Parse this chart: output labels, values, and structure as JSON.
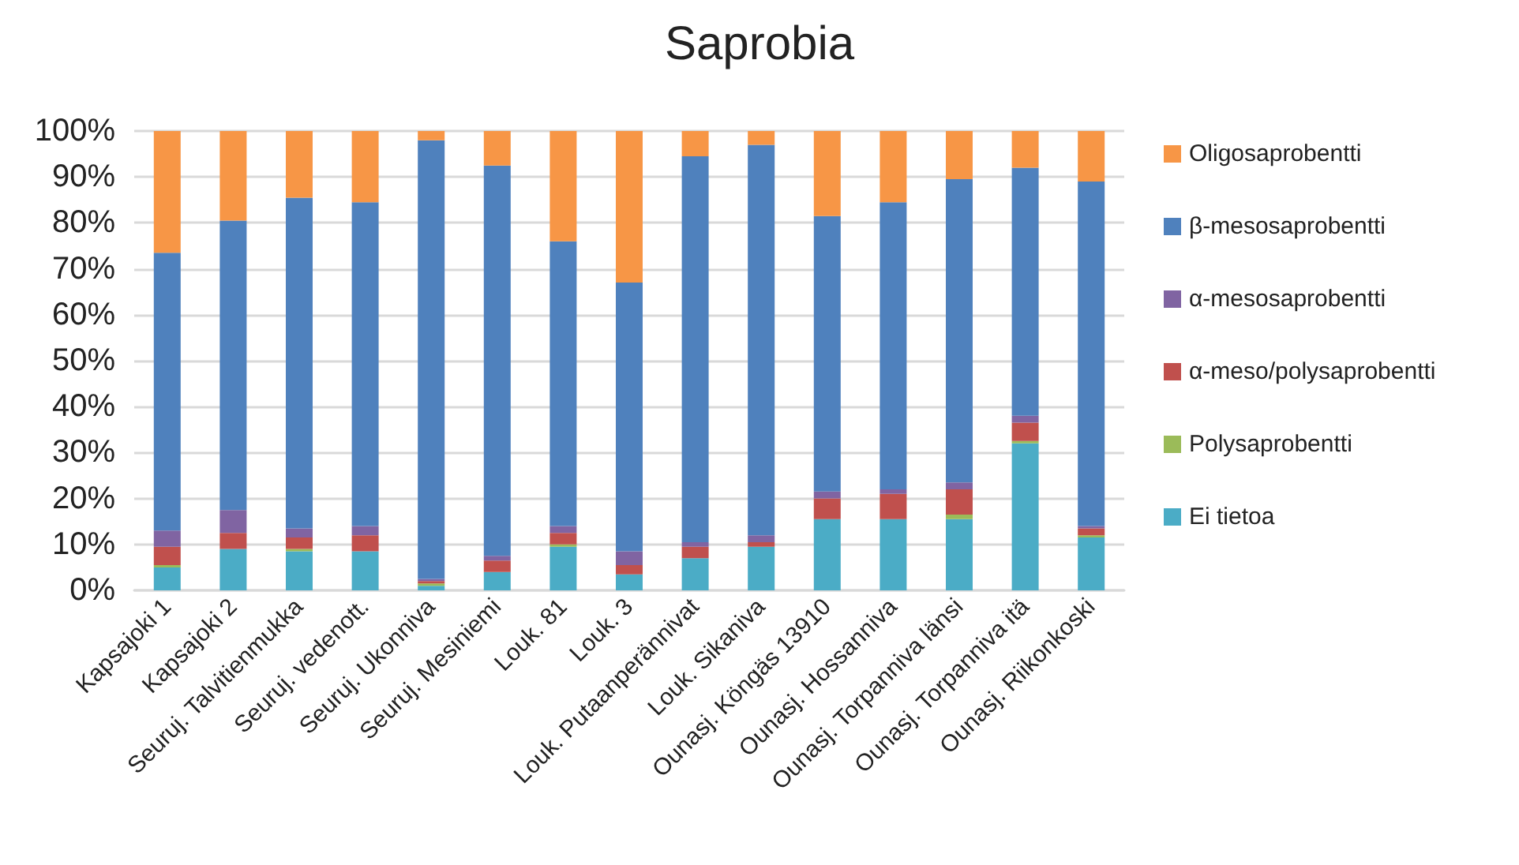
{
  "chart_data": {
    "type": "bar",
    "title": "Saprobia",
    "stacked": true,
    "categories": [
      "Kapsajoki 1",
      "Kapsajoki 2",
      "Seuruj. Talvitienmukka",
      "Seuruj. vedenott.",
      "Seuruj. Ukonniva",
      "Seuruj. Mesiniemi",
      "Louk. 81",
      "Louk. 3",
      "Louk. Putaanperännivat",
      "Louk. Sikaniva",
      "Ounasj. Köngäs 13910",
      "Ounasj. Hossanniva",
      "Ounasj. Torpanniva länsi",
      "Ounasj. Torpanniva itä",
      "Ounasj. Riikonkoski"
    ],
    "series": [
      {
        "name": "Ei tietoa",
        "color": "#4bacc6",
        "values": [
          5,
          9,
          8.5,
          8.5,
          1,
          4,
          9.5,
          3.5,
          7,
          9.5,
          15.5,
          15.5,
          15.5,
          32,
          11.5
        ]
      },
      {
        "name": "Polysaprobentti",
        "color": "#9bbb59",
        "values": [
          0.5,
          0,
          0.5,
          0,
          0.5,
          0,
          0.5,
          0,
          0,
          0,
          0,
          0,
          1,
          0.5,
          0.5
        ]
      },
      {
        "name": "α-meso/polysaprobentti",
        "color": "#c0504d",
        "values": [
          4,
          3.5,
          2.5,
          3.5,
          0.5,
          2.5,
          2.5,
          2,
          2.5,
          1,
          4.5,
          5.5,
          5.5,
          4,
          1.5
        ]
      },
      {
        "name": "α-mesosaprobentti",
        "color": "#8064a2",
        "values": [
          3.5,
          5,
          2,
          2,
          0.5,
          1,
          1.5,
          3,
          1,
          1.5,
          1.5,
          1,
          1.5,
          1.5,
          0.5
        ]
      },
      {
        "name": "β-mesosaprobentti",
        "color": "#4f81bd",
        "values": [
          60.5,
          63,
          72,
          70.5,
          95.5,
          85,
          62,
          58.5,
          84,
          85,
          60,
          62.5,
          66,
          54,
          75
        ]
      },
      {
        "name": "Oligosaprobentti",
        "color": "#f79646",
        "values": [
          26.5,
          19.5,
          14.5,
          15.5,
          2,
          7.5,
          24,
          33,
          5.5,
          3,
          18.5,
          15.5,
          10.5,
          8,
          11
        ]
      }
    ],
    "ylim": [
      0,
      100
    ],
    "yticks": [
      {
        "value": 0,
        "label": "0%"
      },
      {
        "value": 10,
        "label": "10%"
      },
      {
        "value": 20,
        "label": "20%"
      },
      {
        "value": 30,
        "label": "30%"
      },
      {
        "value": 40,
        "label": "40%"
      },
      {
        "value": 50,
        "label": "50%"
      },
      {
        "value": 60,
        "label": "60%"
      },
      {
        "value": 70,
        "label": "70%"
      },
      {
        "value": 80,
        "label": "80%"
      },
      {
        "value": 90,
        "label": "90%"
      },
      {
        "value": 100,
        "label": "100%"
      }
    ],
    "grid": "y",
    "legend": "right"
  }
}
